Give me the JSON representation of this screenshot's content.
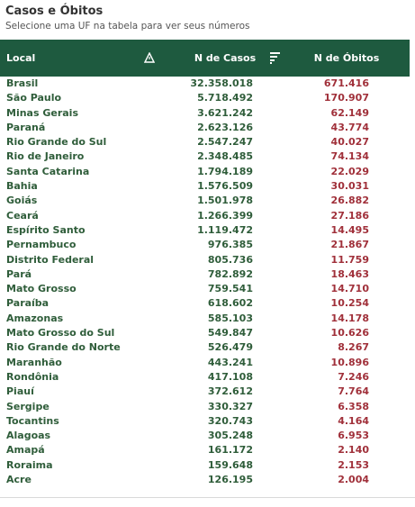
{
  "header": {
    "title": "Casos e Óbitos",
    "subtitle": "Selecione uma UF na tabela para ver seus números"
  },
  "table": {
    "columns": {
      "local": "Local",
      "casos": "N de Casos",
      "obitos": "N de Óbitos"
    },
    "icons": {
      "sort": "sort-triangle-icon",
      "filter": "filter-lines-icon"
    },
    "colors": {
      "header_bg": "#1e5a3f",
      "header_text": "#ffffff",
      "local_text": "#2f5d3a",
      "casos_text": "#2f5d3a",
      "obitos_text": "#a0303a"
    },
    "rows": [
      {
        "local": "Brasil",
        "casos": "32.358.018",
        "obitos": "671.416"
      },
      {
        "local": "São Paulo",
        "casos": "5.718.492",
        "obitos": "170.907"
      },
      {
        "local": "Minas Gerais",
        "casos": "3.621.242",
        "obitos": "62.149"
      },
      {
        "local": "Paraná",
        "casos": "2.623.126",
        "obitos": "43.774"
      },
      {
        "local": "Rio Grande do Sul",
        "casos": "2.547.247",
        "obitos": "40.027"
      },
      {
        "local": "Rio de Janeiro",
        "casos": "2.348.485",
        "obitos": "74.134"
      },
      {
        "local": "Santa Catarina",
        "casos": "1.794.189",
        "obitos": "22.029"
      },
      {
        "local": "Bahia",
        "casos": "1.576.509",
        "obitos": "30.031"
      },
      {
        "local": "Goiás",
        "casos": "1.501.978",
        "obitos": "26.882"
      },
      {
        "local": "Ceará",
        "casos": "1.266.399",
        "obitos": "27.186"
      },
      {
        "local": "Espírito Santo",
        "casos": "1.119.472",
        "obitos": "14.495"
      },
      {
        "local": "Pernambuco",
        "casos": "976.385",
        "obitos": "21.867"
      },
      {
        "local": "Distrito Federal",
        "casos": "805.736",
        "obitos": "11.759"
      },
      {
        "local": "Pará",
        "casos": "782.892",
        "obitos": "18.463"
      },
      {
        "local": "Mato Grosso",
        "casos": "759.541",
        "obitos": "14.710"
      },
      {
        "local": "Paraíba",
        "casos": "618.602",
        "obitos": "10.254"
      },
      {
        "local": "Amazonas",
        "casos": "585.103",
        "obitos": "14.178"
      },
      {
        "local": "Mato Grosso do Sul",
        "casos": "549.847",
        "obitos": "10.626"
      },
      {
        "local": "Rio Grande do Norte",
        "casos": "526.479",
        "obitos": "8.267"
      },
      {
        "local": "Maranhão",
        "casos": "443.241",
        "obitos": "10.896"
      },
      {
        "local": "Rondônia",
        "casos": "417.108",
        "obitos": "7.246"
      },
      {
        "local": "Piauí",
        "casos": "372.612",
        "obitos": "7.764"
      },
      {
        "local": "Sergipe",
        "casos": "330.327",
        "obitos": "6.358"
      },
      {
        "local": "Tocantins",
        "casos": "320.743",
        "obitos": "4.164"
      },
      {
        "local": "Alagoas",
        "casos": "305.248",
        "obitos": "6.953"
      },
      {
        "local": "Amapá",
        "casos": "161.172",
        "obitos": "2.140"
      },
      {
        "local": "Roraima",
        "casos": "159.648",
        "obitos": "2.153"
      },
      {
        "local": "Acre",
        "casos": "126.195",
        "obitos": "2.004"
      }
    ]
  }
}
